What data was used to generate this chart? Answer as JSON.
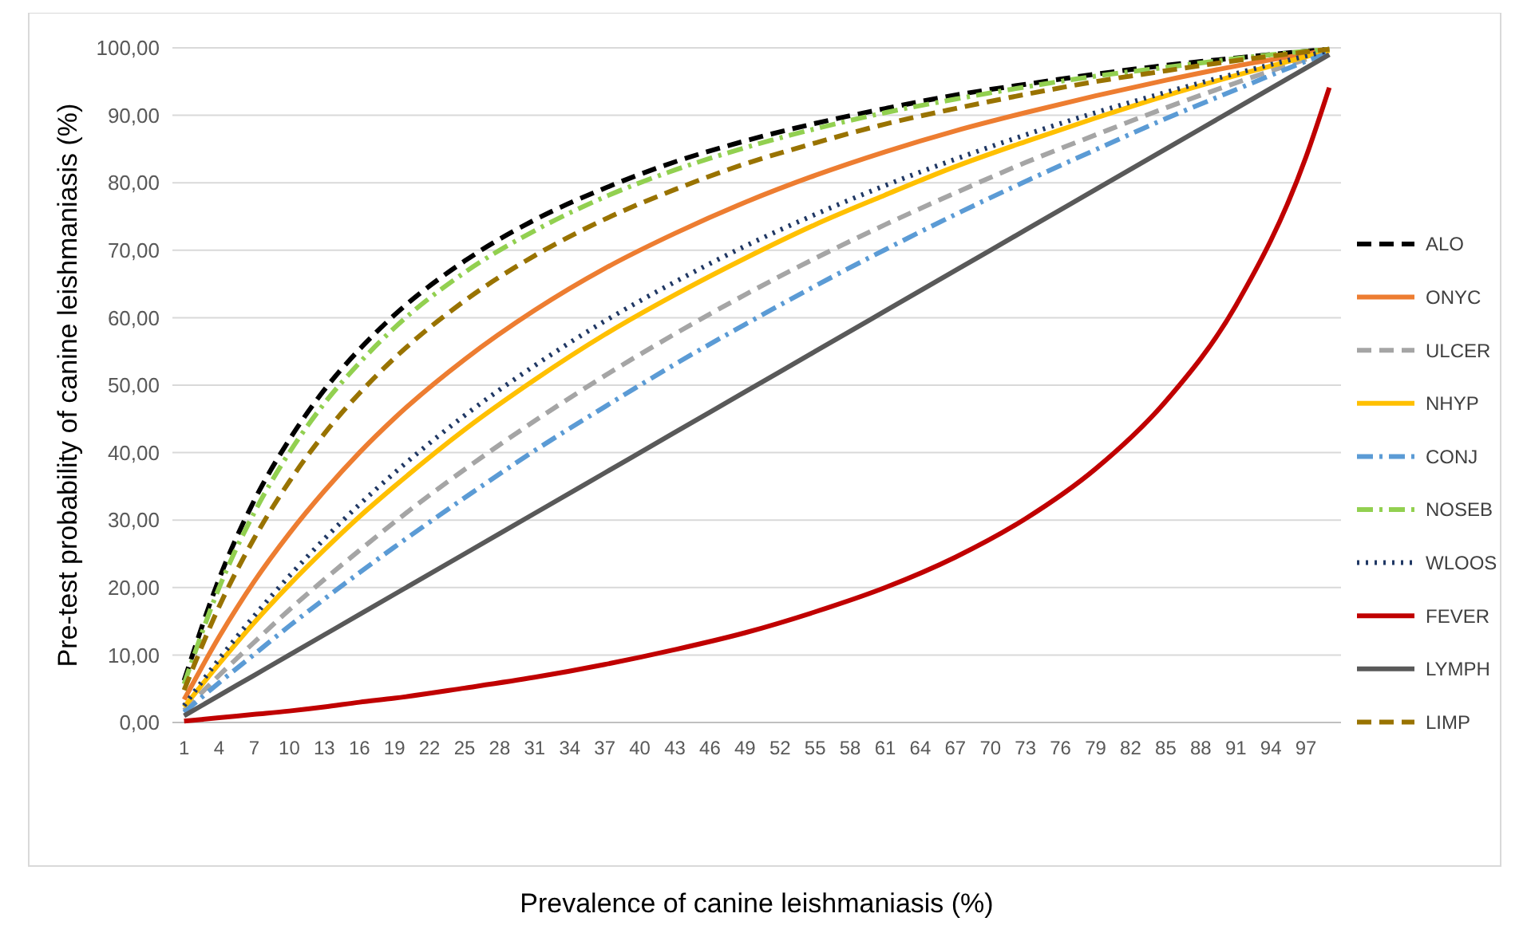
{
  "chart_data": {
    "type": "line",
    "xlabel": "Prevalence of canine leishmaniasis (%)",
    "ylabel": "Pre-test probability of canine leishmaniasis (%)",
    "x": [
      1,
      4,
      7,
      10,
      13,
      16,
      19,
      25,
      31,
      37,
      43,
      49,
      55,
      61,
      67,
      73,
      79,
      85,
      91,
      97,
      99
    ],
    "xlim": [
      0,
      100
    ],
    "xticks": [
      1,
      4,
      7,
      10,
      13,
      16,
      19,
      22,
      25,
      28,
      31,
      34,
      37,
      40,
      43,
      46,
      49,
      52,
      55,
      58,
      61,
      64,
      67,
      70,
      73,
      76,
      79,
      82,
      85,
      88,
      91,
      94,
      97
    ],
    "ylim": [
      0,
      100
    ],
    "yticks": [
      {
        "value": 0,
        "label": "0,00"
      },
      {
        "value": 10,
        "label": "10,00"
      },
      {
        "value": 20,
        "label": "20,00"
      },
      {
        "value": 30,
        "label": "30,00"
      },
      {
        "value": 40,
        "label": "40,00"
      },
      {
        "value": 50,
        "label": "50,00"
      },
      {
        "value": 60,
        "label": "60,00"
      },
      {
        "value": 70,
        "label": "70,00"
      },
      {
        "value": 80,
        "label": "80,00"
      },
      {
        "value": 90,
        "label": "90,00"
      },
      {
        "value": 100,
        "label": "100,00"
      }
    ],
    "grid": "y",
    "legend": "right",
    "marker": "none",
    "series": [
      {
        "name": "ALO",
        "color": "#000000",
        "line_style": "dashed",
        "values": [
          6.2,
          21.3,
          32.9,
          41.9,
          49.3,
          55.3,
          60.4,
          68.4,
          74.5,
          79.2,
          83.1,
          86.2,
          88.8,
          91.0,
          93.0,
          94.6,
          96.1,
          97.4,
          98.5,
          99.5,
          99.8
        ]
      },
      {
        "name": "ONYC",
        "color": "#ed7d31",
        "line_style": "solid",
        "values": [
          3.4,
          12.7,
          20.9,
          28,
          34.3,
          40,
          45.1,
          53.8,
          61.1,
          67.3,
          72.5,
          77.1,
          81.1,
          84.6,
          87.7,
          90.4,
          92.9,
          95.2,
          97.3,
          99.1,
          99.7
        ]
      },
      {
        "name": "ULCER",
        "color": "#a5a5a5",
        "line_style": "dashed",
        "values": [
          1.8,
          7.0,
          11.9,
          16.7,
          21.2,
          25.5,
          29.7,
          37.5,
          44.7,
          51.4,
          57.6,
          63.4,
          68.8,
          73.8,
          78.5,
          83.0,
          87.1,
          91.1,
          94.8,
          98.3,
          99.4
        ]
      },
      {
        "name": "NHYP",
        "color": "#ffc000",
        "line_style": "solid",
        "values": [
          2.3,
          8.7,
          14.8,
          20.4,
          25.6,
          30.5,
          35.0,
          43.4,
          50.8,
          57.5,
          63.4,
          68.8,
          73.8,
          78.2,
          82.4,
          86.1,
          89.6,
          92.9,
          95.9,
          98.7,
          99.6
        ]
      },
      {
        "name": "CONJ",
        "color": "#5b9bd5",
        "line_style": "dashdot",
        "values": [
          1.5,
          5.9,
          10.1,
          14.3,
          18.3,
          22.2,
          26.0,
          33.3,
          40.3,
          46.8,
          53.1,
          59.0,
          64.7,
          70.1,
          75.3,
          80.2,
          84.9,
          89.5,
          93.8,
          98.0,
          99.3
        ]
      },
      {
        "name": "NOSEB",
        "color": "#92d050",
        "line_style": "dashdot",
        "values": [
          5.7,
          20,
          31.1,
          40,
          47.3,
          53.3,
          58.5,
          66.7,
          72.9,
          77.9,
          81.9,
          85.2,
          88,
          90.4,
          92.4,
          94.2,
          95.8,
          97.1,
          98.4,
          99.5,
          99.8
        ]
      },
      {
        "name": "WLOOS",
        "color": "#203864",
        "line_style": "dotted",
        "values": [
          2.5,
          9.4,
          15.8,
          21.7,
          27.2,
          32.3,
          37.0,
          45.5,
          52.9,
          59.5,
          65.3,
          70.6,
          75.3,
          79.6,
          83.5,
          87.1,
          90.4,
          93.4,
          96.2,
          98.8,
          99.6
        ]
      },
      {
        "name": "FEVER",
        "color": "#c00000",
        "line_style": "solid",
        "values": [
          0.2,
          0.7,
          1.2,
          1.7,
          2.3,
          3.0,
          3.6,
          5.1,
          6.7,
          8.6,
          10.8,
          13.3,
          16.4,
          20.0,
          24.5,
          30.2,
          37.6,
          47.6,
          61.8,
          83.8,
          94.1
        ]
      },
      {
        "name": "LYMPH",
        "color": "#595959",
        "line_style": "solid",
        "values": [
          1,
          4,
          7,
          10,
          13,
          16,
          19,
          25,
          31,
          37,
          43,
          49,
          55,
          61,
          67,
          73,
          79,
          85,
          91,
          97,
          99
        ]
      },
      {
        "name": "LIMP",
        "color": "#997300",
        "line_style": "dashed",
        "values": [
          4.8,
          17.2,
          27.3,
          35.7,
          42.8,
          48.8,
          54.0,
          62.5,
          69.2,
          74.6,
          79.0,
          82.8,
          85.9,
          88.7,
          91.0,
          93.1,
          95.0,
          96.6,
          98.1,
          99.4,
          99.8
        ]
      }
    ]
  }
}
